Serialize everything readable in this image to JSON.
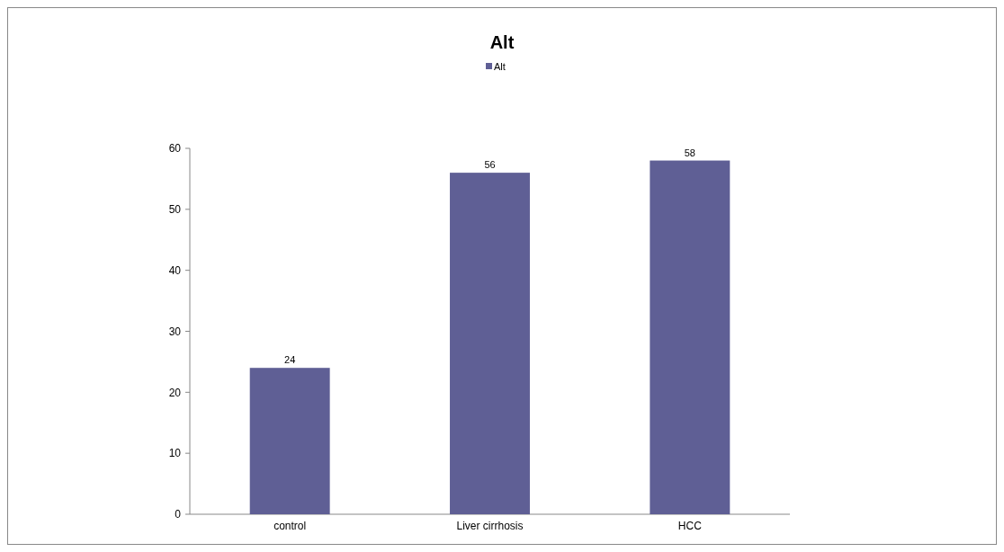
{
  "chart_data": {
    "type": "bar",
    "title": "Alt",
    "categories": [
      "control",
      "Liver cirrhosis",
      "HCC"
    ],
    "series": [
      {
        "name": "Alt",
        "color": "#5f5f95",
        "values": [
          24,
          56,
          58
        ]
      }
    ],
    "ylim": [
      0,
      60
    ],
    "yticks": [
      0,
      10,
      20,
      30,
      40,
      50,
      60
    ],
    "data_labels": true,
    "legend": "top",
    "grid": false
  }
}
